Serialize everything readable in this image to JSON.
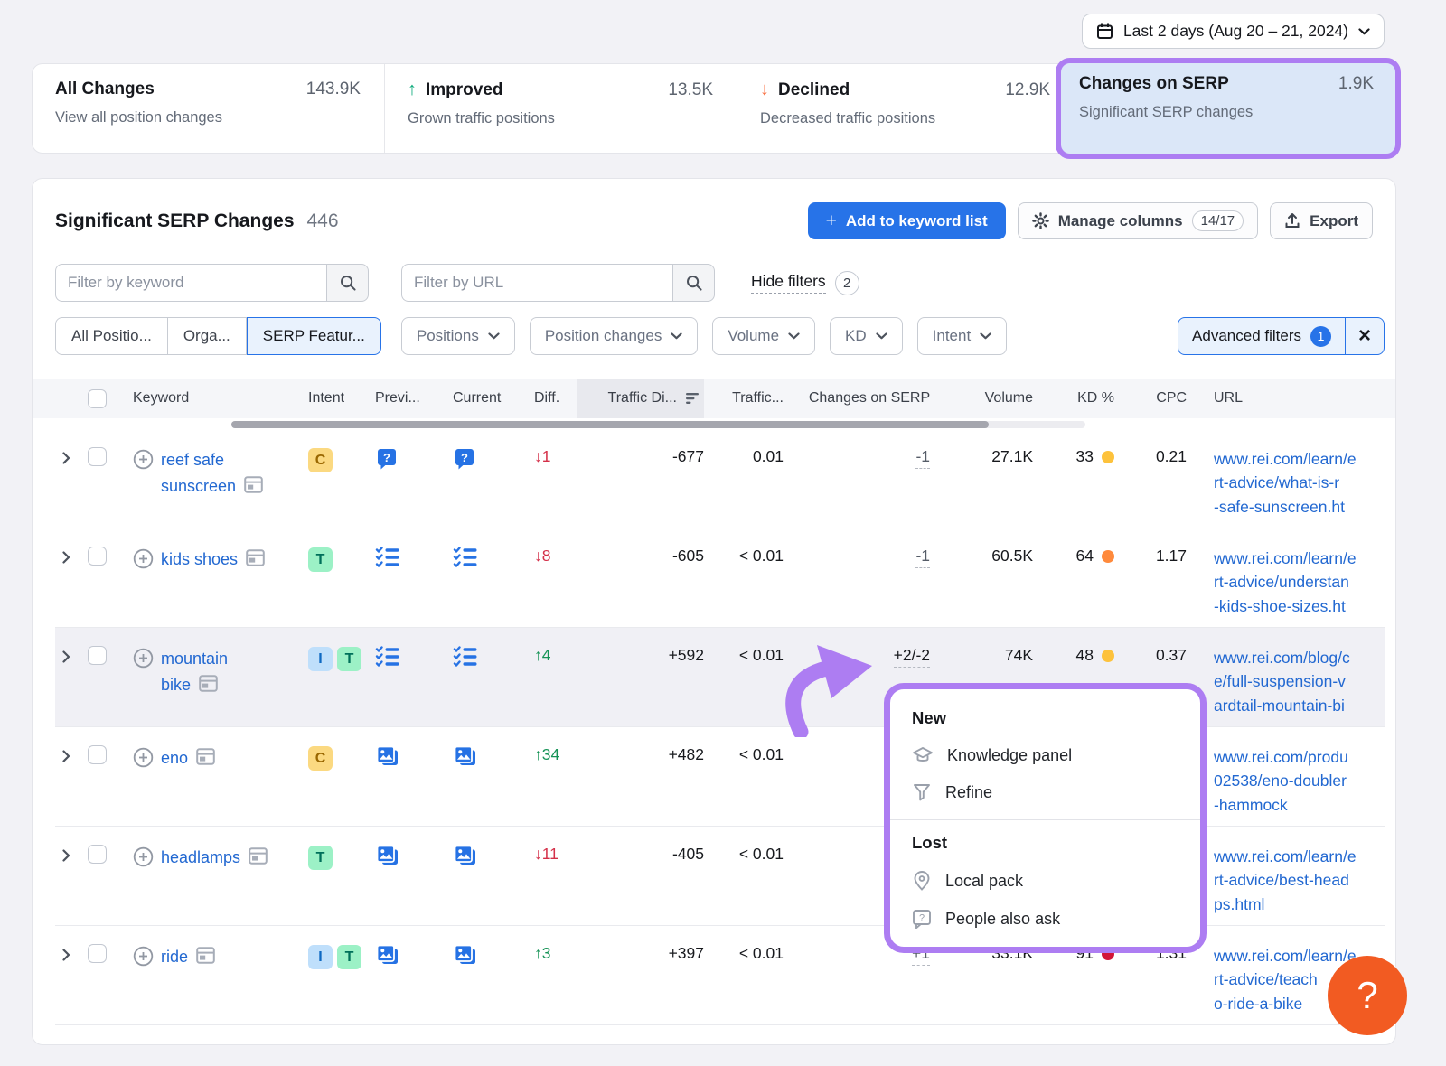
{
  "date_range": {
    "label": "Last 2 days (Aug 20 – 21, 2024)"
  },
  "summary_cards": [
    {
      "title": "All Changes",
      "value": "143.9K",
      "subtitle": "View all position changes"
    },
    {
      "title": "Improved",
      "value": "13.5K",
      "subtitle": "Grown traffic positions",
      "direction": "up"
    },
    {
      "title": "Declined",
      "value": "12.9K",
      "subtitle": "Decreased traffic positions",
      "direction": "down"
    },
    {
      "title": "Changes on SERP",
      "value": "1.9K",
      "subtitle": "Significant SERP changes",
      "highlighted": true
    }
  ],
  "panel": {
    "title": "Significant SERP Changes",
    "count": "446",
    "buttons": {
      "add_keyword": "Add to keyword list",
      "manage_columns": "Manage columns",
      "manage_badge": "14/17",
      "export": "Export"
    },
    "filters": {
      "keyword_placeholder": "Filter by keyword",
      "url_placeholder": "Filter by URL",
      "hide_filters": "Hide filters",
      "hide_filters_count": "2",
      "segments": [
        "All Positio...",
        "Orga...",
        "SERP Featur..."
      ],
      "active_segment_index": 2,
      "dropdowns": [
        "Positions",
        "Position changes",
        "Volume",
        "KD",
        "Intent"
      ],
      "advanced_filters": "Advanced filters",
      "advanced_count": "1"
    },
    "table": {
      "columns": [
        "Keyword",
        "Intent",
        "Previ...",
        "Current",
        "Diff.",
        "Traffic Di...",
        "Traffic...",
        "Changes on SERP",
        "Volume",
        "KD %",
        "CPC",
        "URL"
      ],
      "rows": [
        {
          "keyword": "reef safe sunscreen",
          "keyword_lines": [
            "reef safe",
            "sunscreen"
          ],
          "intents": [
            "C"
          ],
          "prev_icon": "people-also-ask",
          "current_icon": "people-also-ask",
          "diff": {
            "dir": "down",
            "value": "1"
          },
          "traffic_diff": "-677",
          "traffic": "0.01",
          "serp_changes": "-1",
          "volume": "27.1K",
          "kd": "33",
          "kd_dot": "#fdc23c",
          "cpc": "0.21",
          "url_lines": [
            "www.rei.com/learn/e",
            "rt-advice/what-is-r",
            "-safe-sunscreen.ht"
          ]
        },
        {
          "keyword": "kids shoes",
          "keyword_lines": [
            "kids shoes"
          ],
          "intents": [
            "T"
          ],
          "prev_icon": "featured-list",
          "current_icon": "featured-list",
          "diff": {
            "dir": "down",
            "value": "8"
          },
          "traffic_diff": "-605",
          "traffic": "< 0.01",
          "serp_changes": "-1",
          "volume": "60.5K",
          "kd": "64",
          "kd_dot": "#ff8a3c",
          "cpc": "1.17",
          "url_lines": [
            "www.rei.com/learn/e",
            "rt-advice/understan",
            "-kids-shoe-sizes.ht"
          ]
        },
        {
          "keyword": "mountain bike",
          "keyword_lines": [
            "mountain",
            "bike"
          ],
          "highlight": true,
          "intents": [
            "I",
            "T"
          ],
          "prev_icon": "featured-list",
          "current_icon": "featured-list",
          "diff": {
            "dir": "up",
            "value": "4"
          },
          "traffic_diff": "+592",
          "traffic": "< 0.01",
          "serp_changes": "+2/-2",
          "serp_strong": true,
          "volume": "74K",
          "kd": "48",
          "kd_dot": "#fdc23c",
          "cpc": "0.37",
          "url_lines": [
            "www.rei.com/blog/c",
            "e/full-suspension-v",
            "ardtail-mountain-bi"
          ]
        },
        {
          "keyword": "eno",
          "keyword_lines": [
            "eno"
          ],
          "intents": [
            "C"
          ],
          "prev_icon": "image-pack",
          "current_icon": "image-pack",
          "diff": {
            "dir": "up",
            "value": "34"
          },
          "traffic_diff": "+482",
          "traffic": "< 0.01",
          "serp_changes": "",
          "volume": "",
          "kd": "",
          "kd_dot": "",
          "cpc": "",
          "url_lines": [
            "www.rei.com/produ",
            "02538/eno-doubler",
            "-hammock"
          ]
        },
        {
          "keyword": "headlamps",
          "keyword_lines": [
            "headlamps"
          ],
          "intents": [
            "T"
          ],
          "prev_icon": "image-pack",
          "current_icon": "image-pack",
          "diff": {
            "dir": "down",
            "value": "11"
          },
          "traffic_diff": "-405",
          "traffic": "< 0.01",
          "serp_changes": "",
          "volume": "",
          "kd": "",
          "kd_dot": "",
          "cpc": "",
          "url_lines": [
            "www.rei.com/learn/e",
            "rt-advice/best-head",
            "ps.html"
          ]
        },
        {
          "keyword": "ride",
          "keyword_lines": [
            "ride"
          ],
          "intents": [
            "I",
            "T"
          ],
          "prev_icon": "image-pack",
          "current_icon": "image-pack",
          "diff": {
            "dir": "up",
            "value": "3"
          },
          "traffic_diff": "+397",
          "traffic": "< 0.01",
          "serp_changes": "+1",
          "volume": "33.1K",
          "kd": "91",
          "kd_dot": "#d21538",
          "cpc": "1.31",
          "url_lines": [
            "www.rei.com/learn/e",
            "rt-advice/teach",
            "o-ride-a-bike"
          ]
        }
      ]
    }
  },
  "popup": {
    "new_label": "New",
    "new_items": [
      {
        "icon": "knowledge-panel",
        "label": "Knowledge panel"
      },
      {
        "icon": "refine",
        "label": "Refine"
      }
    ],
    "lost_label": "Lost",
    "lost_items": [
      {
        "icon": "local-pack",
        "label": "Local pack"
      },
      {
        "icon": "people-also-ask",
        "label": "People also ask"
      }
    ]
  },
  "help_label": "?",
  "colors": {
    "primary_blue": "#2773e8",
    "highlight_purple": "#ad7df2",
    "link_blue": "#2268d1",
    "positive_green": "#169356",
    "negative_red": "#d43049",
    "improved_teal": "#0fab7c",
    "declined_orange": "#f86c3e",
    "kd_yellow": "#fdc23c",
    "kd_orange": "#ff8a3c",
    "kd_red": "#d21538",
    "help_orange": "#f25b22",
    "serp_feature_blue": "#2672e4"
  }
}
